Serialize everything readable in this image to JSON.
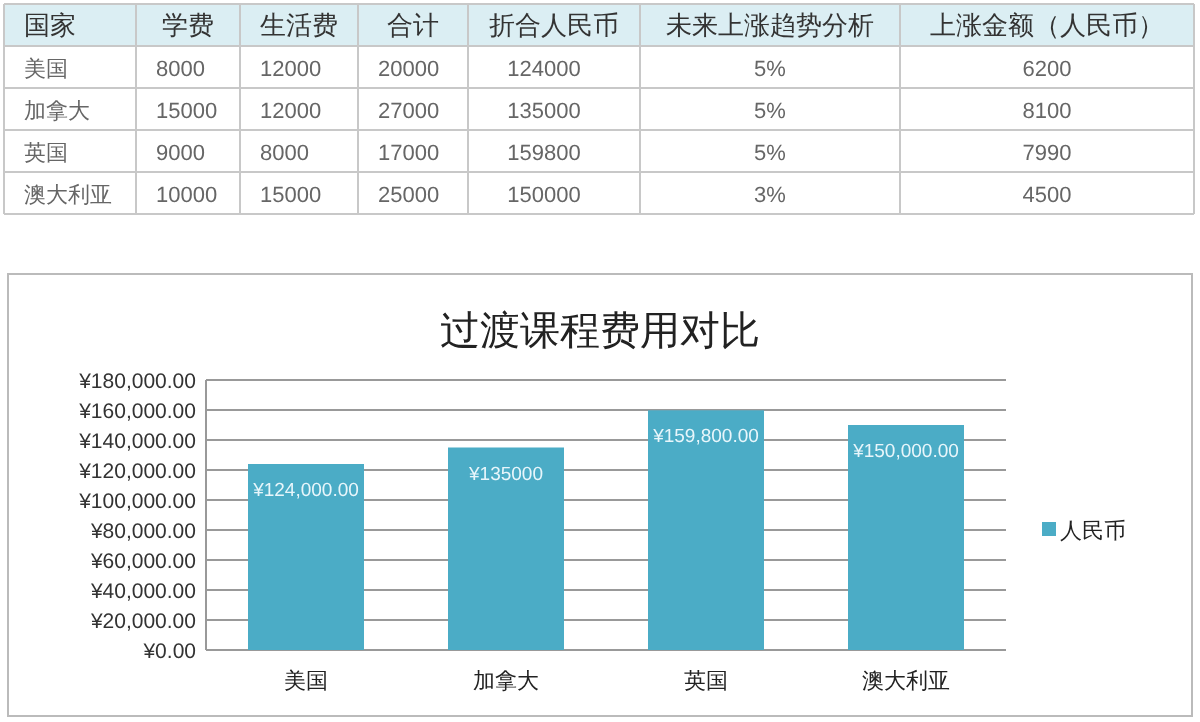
{
  "chart_data": [
    {
      "type": "other",
      "annotations": [
        "国家",
        "学费",
        "生活费",
        "合计",
        "折合人民币",
        "未来上涨趋势分析",
        "上涨金额（人民币）",
        "美国",
        "8000",
        "12000",
        "20000",
        "124000",
        "5%",
        "6200",
        "加拿大",
        "15000",
        "12000",
        "27000",
        "135000",
        "5%",
        "8100",
        "英国",
        "9000",
        "8000",
        "17000",
        "159800",
        "5%",
        "7990",
        "澳大利亚",
        "10000",
        "15000",
        "25000",
        "150000",
        "3%",
        "4500"
      ]
    },
    {
      "type": "bar",
      "title": "过渡课程费用对比",
      "categories": [
        "美国",
        "加拿大",
        "英国",
        "澳大利亚"
      ],
      "series": [
        {
          "name": "人民币",
          "color": "#4bacc6",
          "values": [
            124000,
            135000,
            159800,
            150000
          ],
          "value_labels": [
            "¥124,000.00",
            "¥135000",
            "¥159,800.00",
            "¥150,000.00"
          ]
        }
      ],
      "ylim": [
        0,
        180000
      ],
      "yticks": [
        {
          "value": 0,
          "label": "¥0.00"
        },
        {
          "value": 20000,
          "label": "¥20,000.00"
        },
        {
          "value": 40000,
          "label": "¥40,000.00"
        },
        {
          "value": 60000,
          "label": "¥60,000.00"
        },
        {
          "value": 80000,
          "label": "¥80,000.00"
        },
        {
          "value": 100000,
          "label": "¥100,000.00"
        },
        {
          "value": 120000,
          "label": "¥120,000.00"
        },
        {
          "value": 140000,
          "label": "¥140,000.00"
        },
        {
          "value": 160000,
          "label": "¥160,000.00"
        },
        {
          "value": 180000,
          "label": "¥180,000.00"
        }
      ],
      "grid": "y",
      "legend": "right"
    }
  ]
}
